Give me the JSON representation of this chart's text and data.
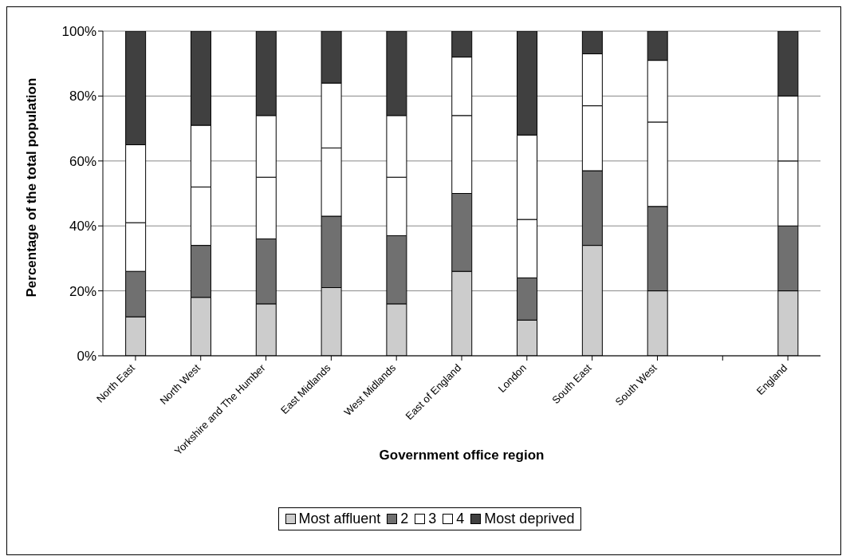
{
  "chart_data": {
    "type": "bar",
    "stacked": true,
    "xlabel": "Government office region",
    "ylabel": "Percentage of the total population",
    "categories": [
      "North East",
      "North West",
      "Yorkshire and The Humber",
      "East Midlands",
      "West Midlands",
      "East of England",
      "London",
      "South East",
      "South West",
      null,
      "England"
    ],
    "series": [
      {
        "name": "Most affluent",
        "color": "#cccccc",
        "values": [
          12,
          18,
          16,
          21,
          16,
          26,
          11,
          34,
          20,
          null,
          20
        ]
      },
      {
        "name": "2",
        "color": "#707070",
        "values": [
          14,
          16,
          20,
          22,
          21,
          24,
          13,
          23,
          26,
          null,
          20
        ]
      },
      {
        "name": "3",
        "color": "#ffffff",
        "values": [
          15,
          18,
          19,
          21,
          18,
          24,
          18,
          20,
          26,
          null,
          20
        ]
      },
      {
        "name": "4",
        "color": "#ffffff",
        "values": [
          24,
          19,
          19,
          20,
          19,
          18,
          26,
          16,
          19,
          null,
          20
        ]
      },
      {
        "name": "Most deprived",
        "color": "#404040",
        "values": [
          35,
          29,
          26,
          16,
          26,
          8,
          32,
          7,
          9,
          null,
          20
        ]
      }
    ],
    "ylim": [
      0,
      100
    ],
    "yticks": [
      {
        "value": 0,
        "label": "0%"
      },
      {
        "value": 20,
        "label": "20%"
      },
      {
        "value": 40,
        "label": "40%"
      },
      {
        "value": 60,
        "label": "60%"
      },
      {
        "value": 80,
        "label": "80%"
      },
      {
        "value": 100,
        "label": "100%"
      }
    ],
    "grid": "y",
    "legend": "bottom"
  }
}
